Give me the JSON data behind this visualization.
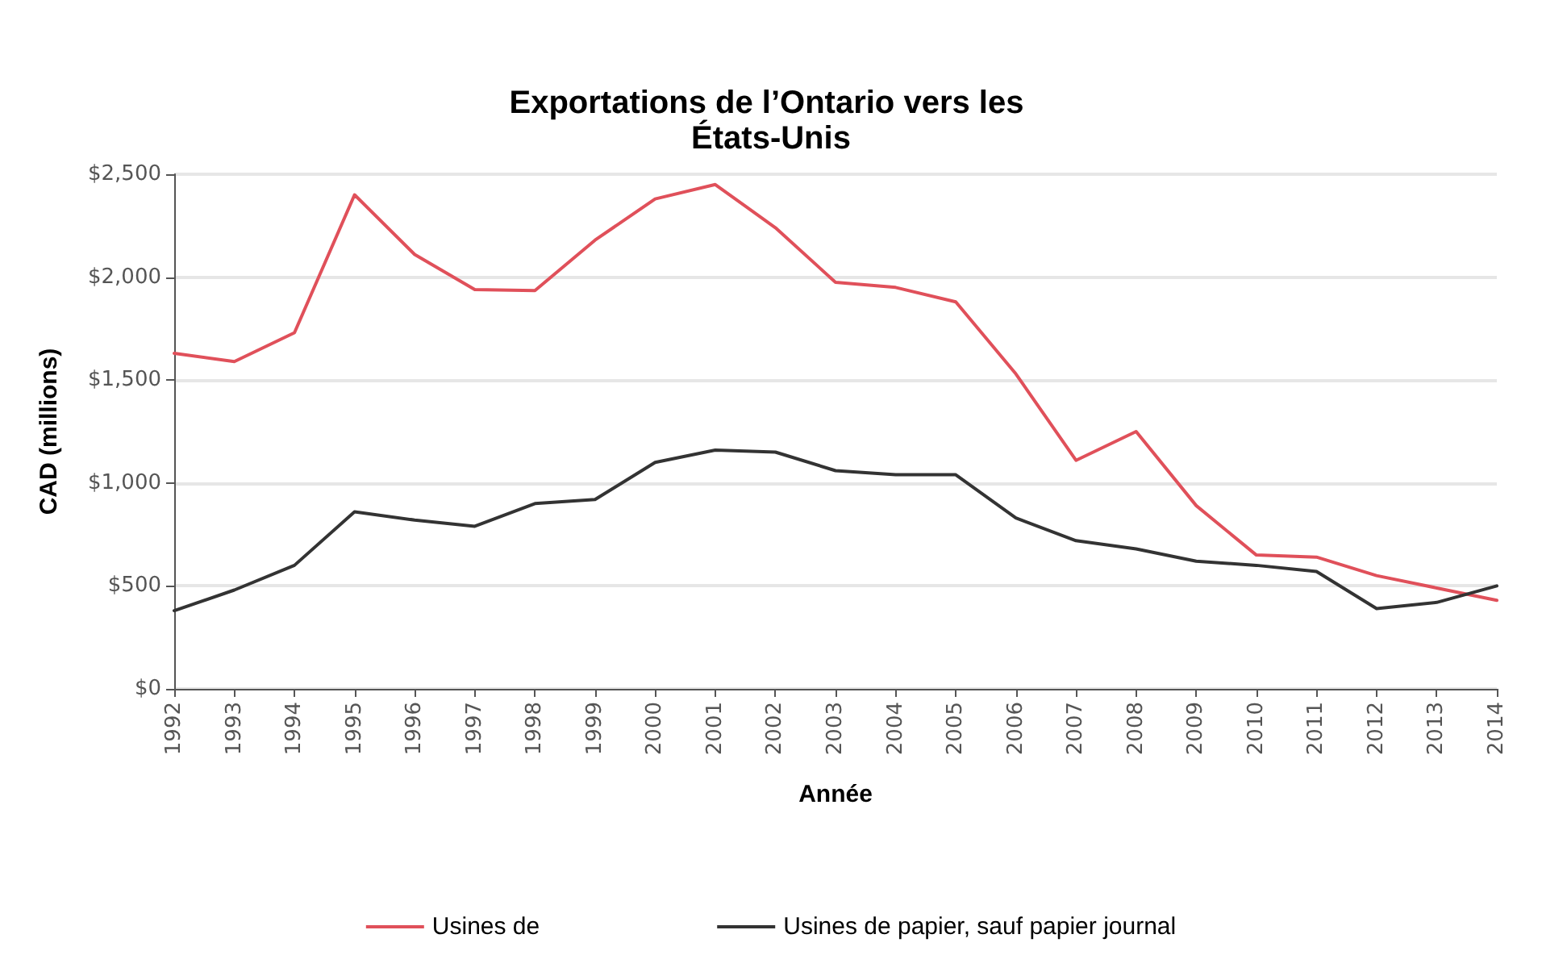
{
  "chart_data": {
    "type": "line",
    "title": "Exportations de l’Ontario vers les États-Unis",
    "xlabel": "Année",
    "ylabel": "CAD (millions)",
    "categories": [
      "1992",
      "1993",
      "1994",
      "1995",
      "1996",
      "1997",
      "1998",
      "1999",
      "2000",
      "2001",
      "2002",
      "2003",
      "2004",
      "2005",
      "2006",
      "2007",
      "2008",
      "2009",
      "2010",
      "2011",
      "2012",
      "2013",
      "2014"
    ],
    "series": [
      {
        "name": "Usines de",
        "color": "#e0505a",
        "values": [
          1630,
          1590,
          1730,
          2400,
          2110,
          1940,
          1935,
          2180,
          2380,
          2450,
          2240,
          1975,
          1950,
          1880,
          1530,
          1110,
          1250,
          890,
          650,
          640,
          550,
          490,
          430
        ]
      },
      {
        "name": "Usines de papier, sauf papier journal",
        "color": "#333333",
        "values": [
          380,
          480,
          600,
          860,
          820,
          790,
          900,
          920,
          1100,
          1160,
          1150,
          1060,
          1040,
          1040,
          830,
          720,
          680,
          620,
          600,
          570,
          390,
          420,
          500
        ]
      }
    ],
    "ylim": [
      0,
      2500
    ],
    "yticks": [
      {
        "value": 0,
        "label": "$0"
      },
      {
        "value": 500,
        "label": "$500"
      },
      {
        "value": 1000,
        "label": "$1,000"
      },
      {
        "value": 1500,
        "label": "$1,500"
      },
      {
        "value": 2000,
        "label": "$2,000"
      },
      {
        "value": 2500,
        "label": "$2,500"
      }
    ],
    "grid": "y",
    "legend": "bottom",
    "marker": "none",
    "line_style": "solid"
  }
}
